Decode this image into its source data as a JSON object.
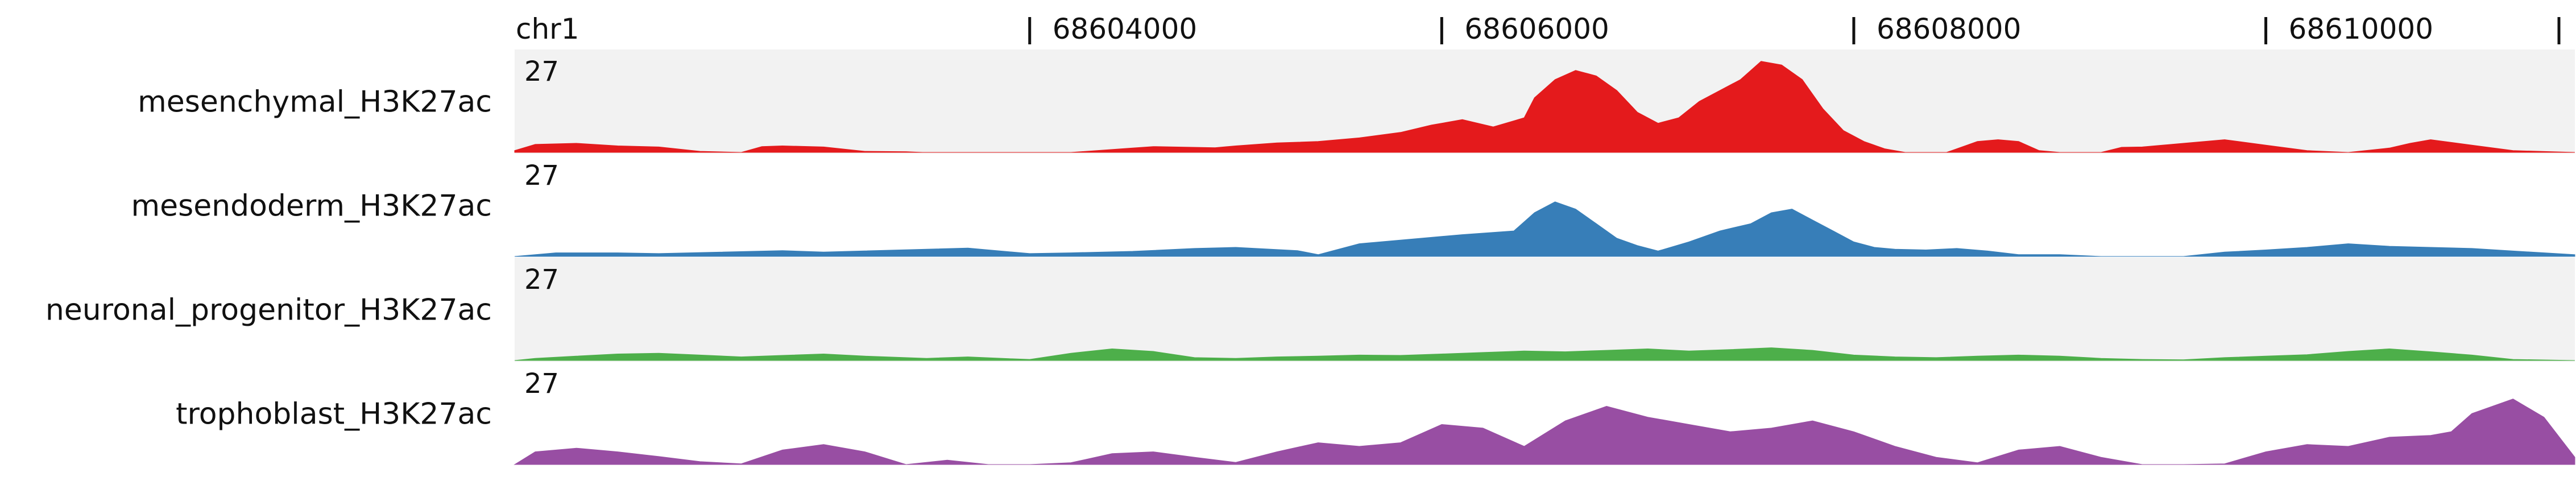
{
  "chart_data": {
    "type": "area",
    "chromosome": "chr1",
    "x_range": [
      68601500,
      68611500
    ],
    "ticks": [
      {
        "pos": 68604000,
        "label": "68604000"
      },
      {
        "pos": 68606000,
        "label": "68606000"
      },
      {
        "pos": 68608000,
        "label": "68608000"
      },
      {
        "pos": 68610000,
        "label": "68610000"
      }
    ],
    "y_max": 27,
    "tracks": [
      {
        "name": "mesenchymal_H3K27ac",
        "label": "mesenchymal_H3K27ac",
        "scale_label": "27",
        "color": "#e41a1c",
        "background": "#f2f2f2",
        "x": [
          68601500,
          68601600,
          68601800,
          68602000,
          68602200,
          68602400,
          68602600,
          68602700,
          68602800,
          68603000,
          68603200,
          68603400,
          68603480,
          68604200,
          68604500,
          68604600,
          68604900,
          68605000,
          68605100,
          68605200,
          68605400,
          68605600,
          68605800,
          68605950,
          68606100,
          68606250,
          68606400,
          68606450,
          68606550,
          68606650,
          68606750,
          68606850,
          68606950,
          68607050,
          68607150,
          68607250,
          68607350,
          68607450,
          68607550,
          68607650,
          68607750,
          68607850,
          68607950,
          68608050,
          68608150,
          68608250,
          68608350,
          68608450,
          68608600,
          68608700,
          68608800,
          68608900,
          68609000,
          68609200,
          68609300,
          68609400,
          68609600,
          68609800,
          68610000,
          68610200,
          68610400,
          68610600,
          68610700,
          68610800,
          68611000,
          68611200,
          68611500
        ],
        "y": [
          0.5,
          2.2,
          2.5,
          1.8,
          1.5,
          0.3,
          0.0,
          1.6,
          1.8,
          1.5,
          0.3,
          0.2,
          0.0,
          0.0,
          1.2,
          1.6,
          1.3,
          1.8,
          2.2,
          2.6,
          3.0,
          4.0,
          5.5,
          7.5,
          9.0,
          7.0,
          9.5,
          15,
          20,
          22.5,
          21,
          17,
          11,
          8,
          9.5,
          14,
          17,
          20,
          25,
          24,
          20,
          12,
          6,
          3,
          1,
          0,
          0,
          0,
          3,
          3.5,
          3,
          0.5,
          0,
          0,
          1.4,
          1.5,
          2.5,
          3.5,
          2.0,
          0.5,
          0,
          1.2,
          2.5,
          3.5,
          2.0,
          0.5,
          0.0
        ]
      },
      {
        "name": "mesendoderm_H3K27ac",
        "label": "mesendoderm_H3K27ac",
        "scale_label": "27",
        "color": "#377eb8",
        "background": "#ffffff",
        "x": [
          68601500,
          68601700,
          68602000,
          68602200,
          68602800,
          68603000,
          68603500,
          68603700,
          68603800,
          68604000,
          68604200,
          68604500,
          68604800,
          68605000,
          68605300,
          68605400,
          68605600,
          68605900,
          68606100,
          68606350,
          68606450,
          68606550,
          68606650,
          68606750,
          68606850,
          68606950,
          68607050,
          68607200,
          68607350,
          68607500,
          68607600,
          68607700,
          68607800,
          68607900,
          68608000,
          68608100,
          68608200,
          68608350,
          68608500,
          68608650,
          68608800,
          68609000,
          68609200,
          68609600,
          68609800,
          68610000,
          68610200,
          68610400,
          68610600,
          68610800,
          68611000,
          68611200,
          68611500
        ],
        "y": [
          0,
          1.0,
          1.0,
          0.8,
          1.6,
          1.2,
          2.0,
          2.3,
          1.8,
          0.8,
          1.0,
          1.4,
          2.2,
          2.5,
          1.6,
          0.5,
          3.5,
          5.0,
          6.0,
          7.0,
          12,
          15,
          13,
          9,
          5,
          3,
          1.5,
          4,
          7,
          9,
          12,
          13,
          10,
          7,
          4,
          2.5,
          2,
          1.8,
          2.2,
          1.5,
          0.5,
          0.5,
          0,
          0,
          1.2,
          1.8,
          2.5,
          3.5,
          2.8,
          2.5,
          2.2,
          1.5,
          0.5
        ]
      },
      {
        "name": "neuronal_progenitor_H3K27ac",
        "label": "neuronal_progenitor_H3K27ac",
        "scale_label": "27",
        "color": "#4daf4a",
        "background": "#f2f2f2",
        "x": [
          68601500,
          68601600,
          68601800,
          68602000,
          68602200,
          68602400,
          68602600,
          68602800,
          68603000,
          68603200,
          68603500,
          68603700,
          68603900,
          68604000,
          68604200,
          68604400,
          68604600,
          68604800,
          68605000,
          68605200,
          68605400,
          68605600,
          68605800,
          68606000,
          68606200,
          68606400,
          68606600,
          68606800,
          68607000,
          68607200,
          68607400,
          68607600,
          68607800,
          68608000,
          68608200,
          68608400,
          68608600,
          68608800,
          68609000,
          68609200,
          68609400,
          68609600,
          68609800,
          68610000,
          68610200,
          68610400,
          68610600,
          68610800,
          68611000,
          68611200,
          68611500
        ],
        "y": [
          0,
          0.6,
          1.2,
          1.8,
          2.0,
          1.5,
          1.0,
          1.4,
          1.8,
          1.2,
          0.6,
          1.0,
          0.5,
          0.3,
          2.0,
          3.2,
          2.5,
          0.8,
          0.6,
          1.0,
          1.2,
          1.5,
          1.4,
          1.8,
          2.2,
          2.6,
          2.4,
          2.8,
          3.2,
          2.6,
          3.0,
          3.5,
          2.8,
          1.5,
          1.0,
          0.8,
          1.2,
          1.5,
          1.2,
          0.6,
          0.3,
          0.2,
          0.8,
          1.2,
          1.6,
          2.5,
          3.2,
          2.4,
          1.5,
          0.3,
          0.0
        ]
      },
      {
        "name": "trophoblast_H3K27ac",
        "label": "trophoblast_H3K27ac",
        "scale_label": "27",
        "color": "#984ea3",
        "background": "#ffffff",
        "x": [
          68601500,
          68601600,
          68601800,
          68602000,
          68602200,
          68602400,
          68602600,
          68602800,
          68603000,
          68603200,
          68603400,
          68603600,
          68603800,
          68604000,
          68604200,
          68604400,
          68604600,
          68604800,
          68605000,
          68605200,
          68605400,
          68605600,
          68605800,
          68606000,
          68606200,
          68606400,
          68606600,
          68606800,
          68607000,
          68607200,
          68607400,
          68607600,
          68607800,
          68608000,
          68608200,
          68608400,
          68608600,
          68608800,
          68609000,
          68609200,
          68609400,
          68609600,
          68609800,
          68610000,
          68610200,
          68610400,
          68610600,
          68610800,
          68610900,
          68611000,
          68611200,
          68611350,
          68611500
        ],
        "y": [
          0,
          3.5,
          4.5,
          3.5,
          2.2,
          0.8,
          0.2,
          4.0,
          5.5,
          3.5,
          0.0,
          1.2,
          0.0,
          0.0,
          0.5,
          3.0,
          3.5,
          2.0,
          0.6,
          3.5,
          6.0,
          5.0,
          6.0,
          11,
          10,
          5,
          12,
          16,
          13,
          11,
          9,
          10,
          12,
          9,
          5,
          2,
          0.5,
          4.0,
          5.0,
          2.0,
          0.0,
          0.0,
          0.2,
          3.5,
          5.5,
          5.0,
          7.5,
          8.0,
          9.0,
          14,
          18,
          13,
          2.0
        ]
      }
    ]
  }
}
